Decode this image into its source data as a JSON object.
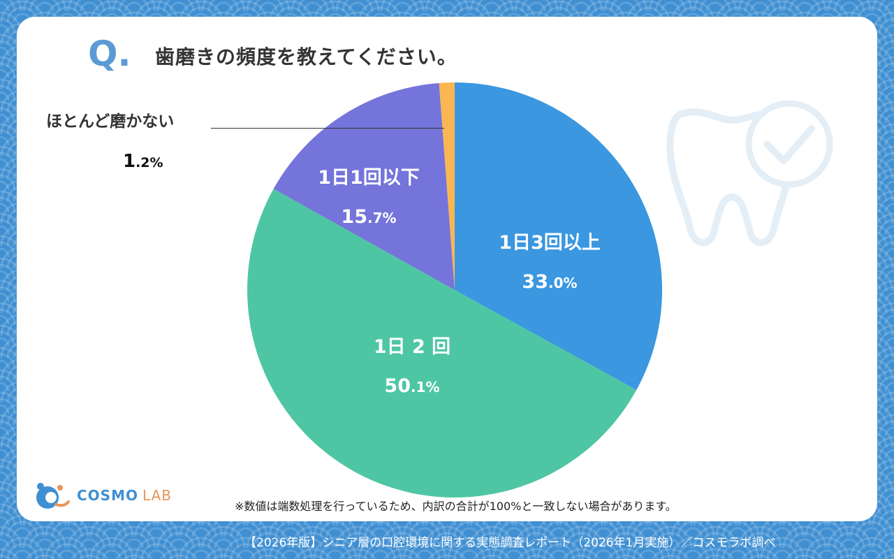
{
  "question": {
    "mark": "Q.",
    "text": "歯磨きの頻度を教えてください。"
  },
  "chart_data": {
    "type": "pie",
    "title": "歯磨きの頻度を教えてください。",
    "slices": [
      {
        "label": "1日3回以上",
        "pct_int": "33",
        "pct_dec": ".0%",
        "value": 33.0,
        "color": "#3a97e0"
      },
      {
        "label": "1日 2 回",
        "pct_int": "50",
        "pct_dec": ".1%",
        "value": 50.1,
        "color": "#4ec6a3"
      },
      {
        "label": "1日1回以下",
        "pct_int": "15",
        "pct_dec": ".7%",
        "value": 15.7,
        "color": "#7474db"
      },
      {
        "label": "ほとんど磨かない",
        "pct_int": "1",
        "pct_dec": ".2%",
        "value": 1.2,
        "color": "#fbb652"
      }
    ]
  },
  "logo": {
    "name": "COSMO",
    "suffix": "LAB",
    "colors": {
      "primary": "#3f8fd2",
      "accent": "#e8955a"
    }
  },
  "footnote": "※数値は端数処理を行っているため、内訳の合計が100%と一致しない場合があります。",
  "source": "【2026年版】シニア層の口腔環境に関する実態調査レポート（2026年1月実施）／コスモラボ調べ",
  "icons": {
    "decor": "tooth-check-icon"
  }
}
